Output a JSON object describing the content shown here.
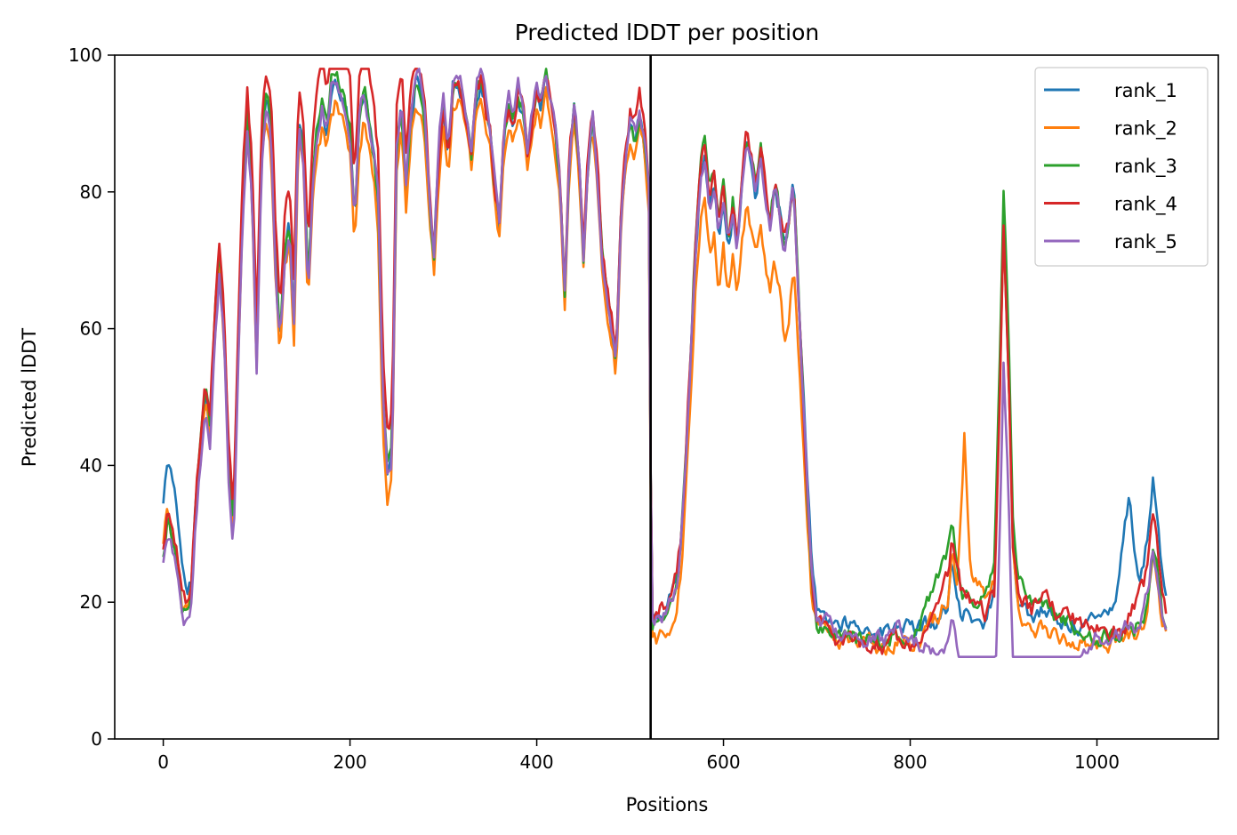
{
  "chart_data": {
    "type": "line",
    "title": "Predicted lDDT per position",
    "xlabel": "Positions",
    "ylabel": "Predicted lDDT",
    "xlim": [
      -52,
      1130
    ],
    "ylim": [
      0,
      100
    ],
    "xticks": [
      0,
      200,
      400,
      600,
      800,
      1000
    ],
    "yticks": [
      0,
      20,
      40,
      60,
      80,
      100
    ],
    "legend_position": "top-right",
    "vline_x": 522,
    "colors": {
      "rank_1": "#1f77b4",
      "rank_2": "#ff7f0e",
      "rank_3": "#2ca02c",
      "rank_4": "#d62728",
      "rank_5": "#9467bd"
    },
    "base_profile": [
      [
        0,
        29
      ],
      [
        5,
        34
      ],
      [
        10,
        30
      ],
      [
        15,
        27
      ],
      [
        20,
        20
      ],
      [
        25,
        19
      ],
      [
        30,
        22
      ],
      [
        35,
        35
      ],
      [
        40,
        42
      ],
      [
        45,
        50
      ],
      [
        50,
        45
      ],
      [
        55,
        60
      ],
      [
        60,
        70
      ],
      [
        65,
        60
      ],
      [
        70,
        40
      ],
      [
        75,
        30
      ],
      [
        80,
        55
      ],
      [
        85,
        78
      ],
      [
        90,
        90
      ],
      [
        95,
        80
      ],
      [
        100,
        55
      ],
      [
        105,
        85
      ],
      [
        110,
        92
      ],
      [
        115,
        90
      ],
      [
        120,
        70
      ],
      [
        125,
        58
      ],
      [
        130,
        70
      ],
      [
        135,
        75
      ],
      [
        140,
        60
      ],
      [
        145,
        90
      ],
      [
        150,
        85
      ],
      [
        155,
        65
      ],
      [
        160,
        80
      ],
      [
        165,
        88
      ],
      [
        170,
        92
      ],
      [
        175,
        88
      ],
      [
        180,
        95
      ],
      [
        185,
        96
      ],
      [
        190,
        94
      ],
      [
        195,
        92
      ],
      [
        200,
        88
      ],
      [
        205,
        75
      ],
      [
        210,
        90
      ],
      [
        215,
        94
      ],
      [
        220,
        90
      ],
      [
        225,
        85
      ],
      [
        230,
        78
      ],
      [
        235,
        50
      ],
      [
        240,
        38
      ],
      [
        245,
        40
      ],
      [
        250,
        85
      ],
      [
        255,
        92
      ],
      [
        260,
        80
      ],
      [
        265,
        90
      ],
      [
        270,
        96
      ],
      [
        275,
        95
      ],
      [
        280,
        90
      ],
      [
        285,
        78
      ],
      [
        290,
        70
      ],
      [
        295,
        85
      ],
      [
        300,
        92
      ],
      [
        305,
        85
      ],
      [
        310,
        95
      ],
      [
        315,
        96
      ],
      [
        320,
        94
      ],
      [
        325,
        90
      ],
      [
        330,
        85
      ],
      [
        335,
        94
      ],
      [
        340,
        96
      ],
      [
        345,
        92
      ],
      [
        350,
        88
      ],
      [
        355,
        80
      ],
      [
        360,
        75
      ],
      [
        365,
        88
      ],
      [
        370,
        92
      ],
      [
        375,
        90
      ],
      [
        380,
        94
      ],
      [
        385,
        92
      ],
      [
        390,
        85
      ],
      [
        395,
        90
      ],
      [
        400,
        94
      ],
      [
        405,
        92
      ],
      [
        410,
        96
      ],
      [
        415,
        92
      ],
      [
        420,
        88
      ],
      [
        425,
        80
      ],
      [
        430,
        65
      ],
      [
        435,
        85
      ],
      [
        440,
        92
      ],
      [
        445,
        85
      ],
      [
        450,
        70
      ],
      [
        455,
        85
      ],
      [
        460,
        90
      ],
      [
        465,
        82
      ],
      [
        470,
        70
      ],
      [
        475,
        65
      ],
      [
        480,
        60
      ],
      [
        485,
        55
      ],
      [
        490,
        75
      ],
      [
        495,
        85
      ],
      [
        500,
        90
      ],
      [
        505,
        88
      ],
      [
        510,
        92
      ],
      [
        515,
        88
      ],
      [
        520,
        80
      ],
      [
        523,
        17
      ],
      [
        530,
        17
      ],
      [
        540,
        18
      ],
      [
        545,
        20
      ],
      [
        550,
        22
      ],
      [
        555,
        28
      ],
      [
        560,
        40
      ],
      [
        565,
        55
      ],
      [
        570,
        70
      ],
      [
        575,
        80
      ],
      [
        580,
        84
      ],
      [
        585,
        76
      ],
      [
        590,
        80
      ],
      [
        595,
        72
      ],
      [
        600,
        78
      ],
      [
        605,
        70
      ],
      [
        610,
        76
      ],
      [
        615,
        70
      ],
      [
        620,
        80
      ],
      [
        625,
        86
      ],
      [
        630,
        82
      ],
      [
        635,
        78
      ],
      [
        640,
        84
      ],
      [
        645,
        78
      ],
      [
        650,
        74
      ],
      [
        655,
        80
      ],
      [
        660,
        76
      ],
      [
        665,
        70
      ],
      [
        670,
        74
      ],
      [
        675,
        80
      ],
      [
        680,
        65
      ],
      [
        685,
        50
      ],
      [
        690,
        35
      ],
      [
        695,
        22
      ],
      [
        700,
        17
      ],
      [
        710,
        16
      ],
      [
        720,
        15
      ],
      [
        730,
        15
      ],
      [
        740,
        15
      ],
      [
        750,
        14
      ],
      [
        760,
        15
      ],
      [
        770,
        14
      ],
      [
        780,
        15
      ],
      [
        790,
        16
      ],
      [
        800,
        15
      ],
      [
        810,
        15
      ],
      [
        820,
        16
      ],
      [
        830,
        16
      ],
      [
        840,
        18
      ],
      [
        845,
        24
      ],
      [
        850,
        20
      ],
      [
        855,
        16
      ],
      [
        860,
        17
      ],
      [
        870,
        16
      ],
      [
        880,
        16
      ],
      [
        890,
        20
      ],
      [
        895,
        45
      ],
      [
        900,
        75
      ],
      [
        905,
        55
      ],
      [
        910,
        28
      ],
      [
        915,
        20
      ],
      [
        920,
        18
      ],
      [
        930,
        16
      ],
      [
        940,
        17
      ],
      [
        950,
        16
      ],
      [
        960,
        15
      ],
      [
        970,
        15
      ],
      [
        980,
        15
      ],
      [
        990,
        15
      ],
      [
        1000,
        15
      ],
      [
        1010,
        15
      ],
      [
        1020,
        15
      ],
      [
        1030,
        16
      ],
      [
        1040,
        16
      ],
      [
        1050,
        18
      ],
      [
        1055,
        22
      ],
      [
        1060,
        28
      ],
      [
        1065,
        24
      ],
      [
        1070,
        18
      ],
      [
        1075,
        17
      ]
    ],
    "series": [
      {
        "name": "rank_1",
        "offsets": [
          [
            0,
            6
          ],
          [
            10,
            8
          ],
          [
            20,
            6
          ],
          [
            30,
            1
          ],
          [
            520,
            0
          ],
          [
            523,
            1
          ],
          [
            600,
            1
          ],
          [
            700,
            2
          ],
          [
            800,
            1
          ],
          [
            1000,
            2
          ],
          [
            1020,
            6
          ],
          [
            1035,
            20
          ],
          [
            1045,
            6
          ],
          [
            1060,
            10
          ],
          [
            1075,
            4
          ]
        ]
      },
      {
        "name": "rank_2",
        "offsets": [
          [
            0,
            0
          ],
          [
            200,
            -3
          ],
          [
            240,
            -3
          ],
          [
            300,
            -2
          ],
          [
            523,
            -2
          ],
          [
            600,
            -6
          ],
          [
            640,
            -8
          ],
          [
            670,
            -12
          ],
          [
            700,
            0
          ],
          [
            800,
            -1
          ],
          [
            850,
            4
          ],
          [
            858,
            28
          ],
          [
            865,
            8
          ],
          [
            880,
            5
          ],
          [
            900,
            0
          ],
          [
            1000,
            -1
          ],
          [
            1075,
            -1
          ]
        ]
      },
      {
        "name": "rank_3",
        "offsets": [
          [
            0,
            -2
          ],
          [
            60,
            2
          ],
          [
            200,
            1
          ],
          [
            523,
            0
          ],
          [
            580,
            4
          ],
          [
            640,
            2
          ],
          [
            700,
            0
          ],
          [
            800,
            0
          ],
          [
            840,
            10
          ],
          [
            850,
            4
          ],
          [
            900,
            6
          ],
          [
            1000,
            0
          ],
          [
            1075,
            0
          ]
        ]
      },
      {
        "name": "rank_4",
        "offsets": [
          [
            0,
            -1
          ],
          [
            120,
            6
          ],
          [
            240,
            8
          ],
          [
            300,
            0
          ],
          [
            523,
            2
          ],
          [
            640,
            3
          ],
          [
            700,
            0
          ],
          [
            800,
            -1
          ],
          [
            845,
            6
          ],
          [
            900,
            0
          ],
          [
            940,
            4
          ],
          [
            1030,
            0
          ],
          [
            1045,
            5
          ],
          [
            1060,
            5
          ],
          [
            1075,
            1
          ]
        ]
      },
      {
        "name": "rank_5",
        "offsets": [
          [
            0,
            -3
          ],
          [
            200,
            1
          ],
          [
            300,
            2
          ],
          [
            523,
            0
          ],
          [
            600,
            2
          ],
          [
            700,
            1
          ],
          [
            800,
            0
          ],
          [
            845,
            -6
          ],
          [
            900,
            -20
          ],
          [
            1000,
            0
          ],
          [
            1075,
            0
          ]
        ]
      }
    ]
  }
}
